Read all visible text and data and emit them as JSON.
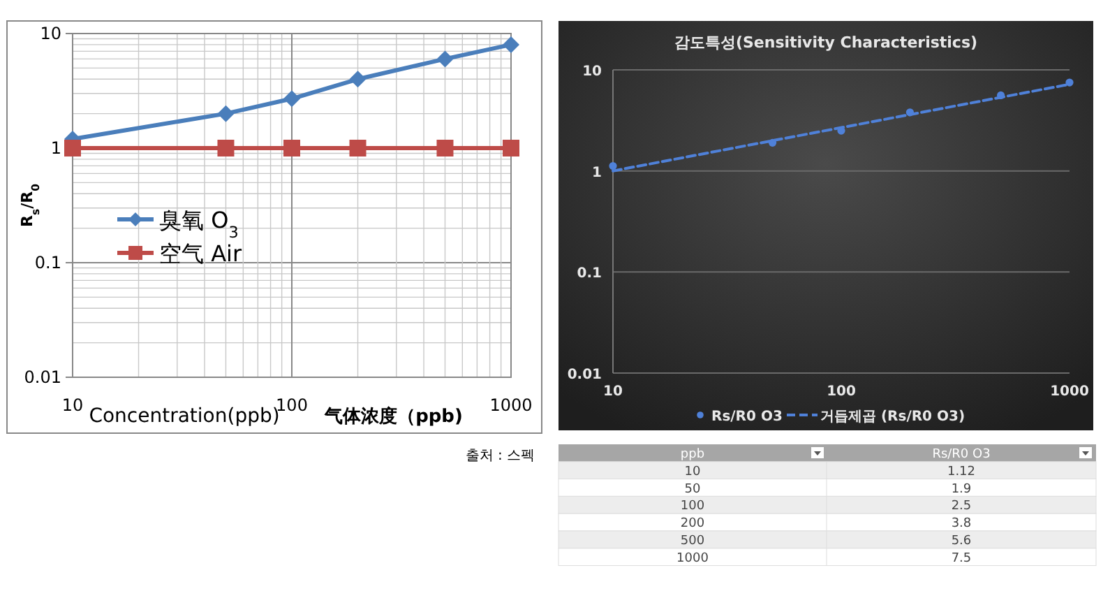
{
  "chart_data": [
    {
      "type": "line",
      "ylabel": "R$_{s}$/R$_{0}$",
      "xlabel": "Concentration(ppb)",
      "x": [
        10,
        50,
        100,
        200,
        500,
        1000
      ],
      "log": "xy",
      "xlim": [
        10,
        1000
      ],
      "ylim": [
        0.01,
        10
      ],
      "xticks": [
        10,
        100,
        1000
      ],
      "yticks": [
        0.01,
        0.1,
        1,
        10
      ],
      "grid": true,
      "legend": "left",
      "series": [
        {
          "name": "臭氧 O$_{3}$",
          "color": "#4a7ebb",
          "marker": "diamond",
          "values": [
            1.2,
            2.0,
            2.7,
            4.0,
            6.0,
            8.0
          ]
        },
        {
          "name": "空气 Air",
          "color": "#be4b48",
          "marker": "square",
          "values": [
            1,
            1,
            1,
            1,
            1,
            1
          ]
        }
      ],
      "annotations": [
        "气体浓度（ppb)",
        "출처 : 스펙"
      ]
    },
    {
      "type": "scatter",
      "title": "감도특성(Sensitivity Characteristics)",
      "log": "xy",
      "xlim": [
        10,
        1000
      ],
      "ylim": [
        0.01,
        10
      ],
      "xticks": [
        10,
        100,
        1000
      ],
      "yticks": [
        0.01,
        0.1,
        1,
        10
      ],
      "grid": "y",
      "legend": "bottom",
      "series": [
        {
          "name": "Rs/R0 O3",
          "color": "#4f81d9",
          "marker": "circle",
          "x": [
            10,
            50,
            100,
            200,
            500,
            1000
          ],
          "values": [
            1.12,
            1.9,
            2.5,
            3.8,
            5.6,
            7.5
          ]
        },
        {
          "name": "거듭제곱 (Rs/R0 O3)",
          "type": "line",
          "color": "#4f81d9",
          "marker": "none",
          "line_style": "dashed",
          "x": [
            10,
            1000
          ],
          "values": [
            1.0,
            7.2
          ]
        }
      ]
    },
    {
      "type": "other",
      "xlabel": "ppb",
      "ylabel": "Rs/R0 O3",
      "categories": [
        "10",
        "50",
        "100",
        "200",
        "500",
        "1000"
      ],
      "values": [
        1.12,
        1.9,
        2.5,
        3.8,
        5.6,
        7.5
      ],
      "data_labels": true
    }
  ]
}
